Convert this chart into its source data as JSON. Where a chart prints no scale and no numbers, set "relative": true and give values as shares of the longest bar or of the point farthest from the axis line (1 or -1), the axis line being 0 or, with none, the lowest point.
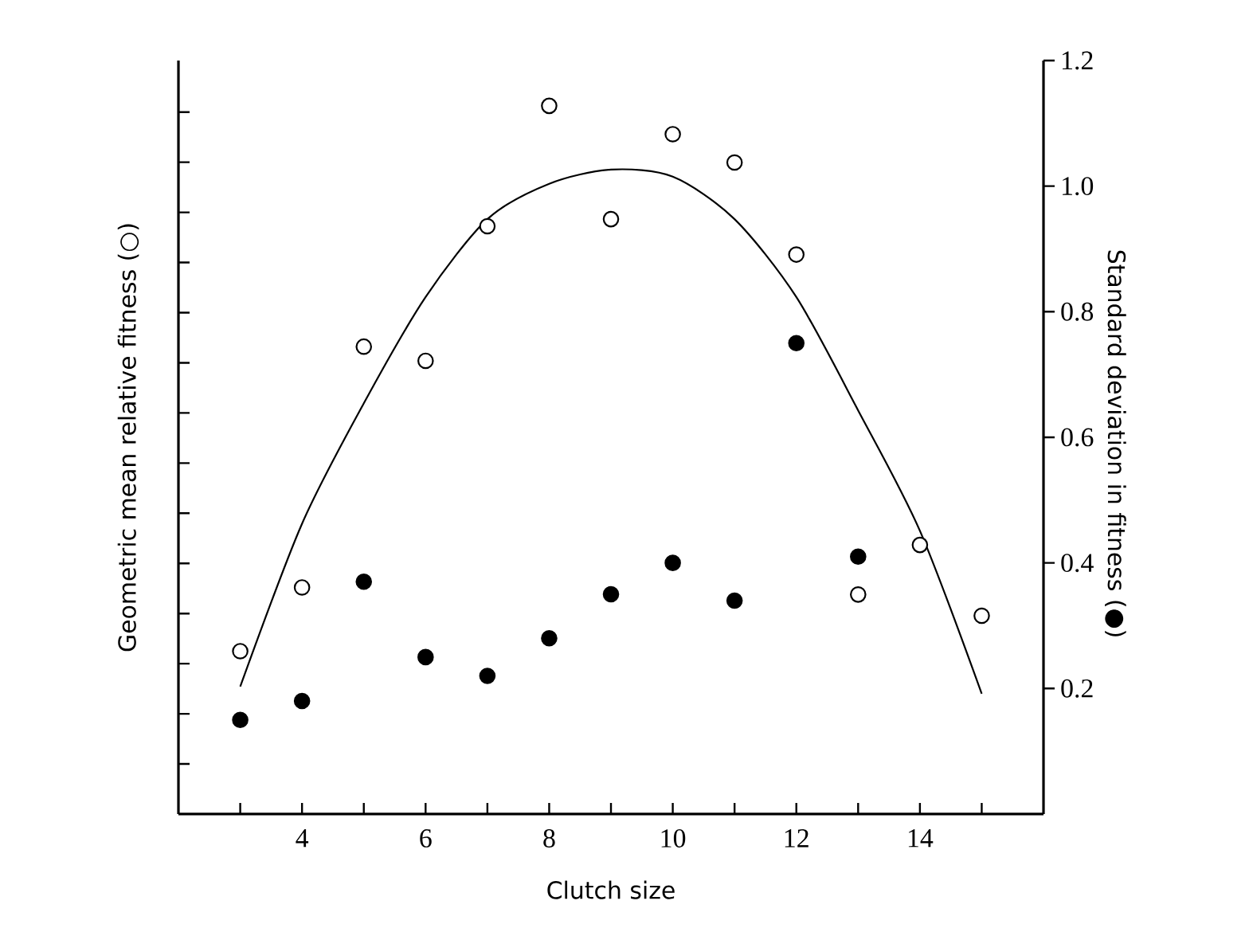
{
  "chart_data": {
    "type": "scatter",
    "xlabel": "Clutch size",
    "ylabel": "Geometric mean relative fitness (○)",
    "y2label": "Standard deviation in fitness (●)",
    "xlim": [
      2,
      16
    ],
    "xticks": [
      {
        "value": 3,
        "label": null
      },
      4,
      {
        "value": 5,
        "label": null
      },
      6,
      {
        "value": 7,
        "label": null
      },
      8,
      {
        "value": 9,
        "label": null
      },
      10,
      {
        "value": 11,
        "label": null
      },
      12,
      {
        "value": 13,
        "label": null
      },
      14,
      {
        "value": 15,
        "label": null
      }
    ],
    "relative": true,
    "y2lim": [
      0,
      1.2
    ],
    "y2ticks": [
      0.2,
      0.4,
      0.6,
      0.8,
      {
        "value": 1.0,
        "label": "1.0"
      },
      1.2
    ],
    "series": [
      {
        "marker": "circle",
        "color": "#ffffff",
        "x": [
          3,
          4,
          5,
          6,
          7,
          8,
          9,
          10,
          11,
          12,
          13,
          14,
          15
        ],
        "values": [
          0.23,
          0.32,
          0.66,
          0.64,
          0.83,
          1,
          0.84,
          0.96,
          0.92,
          0.79,
          0.31,
          0.38,
          0.28
        ]
      },
      {
        "marker": "circle",
        "color": "#000000",
        "axis": "y2",
        "x": [
          3,
          4,
          5,
          6,
          7,
          8,
          9,
          10,
          11,
          12,
          13
        ],
        "values": [
          0.15,
          0.18,
          0.37,
          0.25,
          0.22,
          0.28,
          0.35,
          0.4,
          0.34,
          0.75,
          0.41
        ]
      },
      {
        "type": "line",
        "marker": "none",
        "line_style": "solid",
        "color": "#000000",
        "x": [
          3,
          4,
          5,
          6,
          7,
          8,
          9,
          10,
          11,
          12,
          13,
          14,
          15
        ],
        "values": [
          0.18,
          0.41,
          0.58,
          0.73,
          0.84,
          0.89,
          0.91,
          0.9,
          0.84,
          0.73,
          0.57,
          0.4,
          0.17
        ]
      }
    ]
  }
}
